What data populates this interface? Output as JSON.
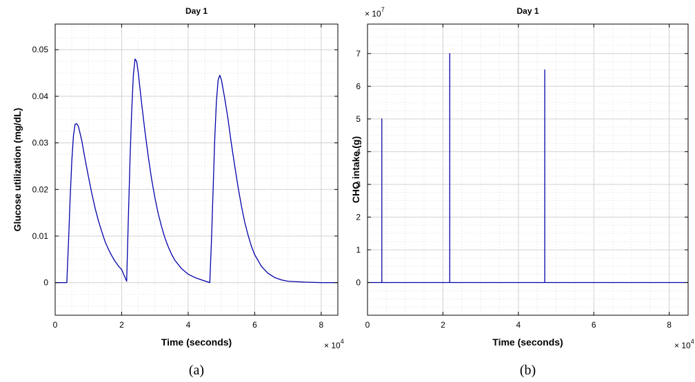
{
  "chart_data": [
    {
      "id": "a",
      "type": "line",
      "title": "Day 1",
      "xlabel": "Time (seconds)",
      "ylabel": "Glucose utilization (mg/dL)",
      "caption": "(a)",
      "x_multiplier_base": "10",
      "x_multiplier_exp": "4",
      "y_multiplier_base": "",
      "y_multiplier_exp": "",
      "xlim": [
        0,
        8.5
      ],
      "ylim": [
        -0.007,
        0.0555
      ],
      "xticks": [
        0,
        2,
        4,
        6,
        8
      ],
      "xtick_labels": [
        "0",
        "2",
        "4",
        "6",
        "8"
      ],
      "yticks": [
        0,
        0.01,
        0.02,
        0.03,
        0.04,
        0.05
      ],
      "ytick_labels": [
        "0",
        "0.01",
        "0.02",
        "0.03",
        "0.04",
        "0.05"
      ],
      "grid": true,
      "color": "#0000aa",
      "series": [
        {
          "x": [
            0,
            0.35,
            0.4,
            0.45,
            0.5,
            0.55,
            0.6,
            0.65,
            0.7,
            0.8,
            0.9,
            1.0,
            1.1,
            1.2,
            1.3,
            1.4,
            1.5,
            1.6,
            1.7,
            1.8,
            1.9,
            2.0,
            2.15,
            2.2,
            2.25,
            2.3,
            2.35,
            2.4,
            2.45,
            2.5,
            2.6,
            2.7,
            2.8,
            2.9,
            3.0,
            3.1,
            3.2,
            3.3,
            3.4,
            3.5,
            3.6,
            3.8,
            4.0,
            4.2,
            4.4,
            4.65,
            4.7,
            4.75,
            4.8,
            4.85,
            4.9,
            4.95,
            5.0,
            5.1,
            5.2,
            5.3,
            5.4,
            5.5,
            5.6,
            5.7,
            5.8,
            5.9,
            6.0,
            6.2,
            6.4,
            6.6,
            6.8,
            7.0,
            7.5,
            8.0,
            8.5
          ],
          "y": [
            0,
            0,
            0.0085,
            0.018,
            0.026,
            0.0315,
            0.034,
            0.0341,
            0.0335,
            0.0305,
            0.0265,
            0.0228,
            0.0192,
            0.016,
            0.0133,
            0.011,
            0.0088,
            0.0072,
            0.0058,
            0.0046,
            0.0036,
            0.0028,
            0.0003,
            0.0135,
            0.026,
            0.0365,
            0.0445,
            0.048,
            0.0475,
            0.045,
            0.0385,
            0.0325,
            0.027,
            0.0222,
            0.0182,
            0.0148,
            0.012,
            0.0096,
            0.0077,
            0.0061,
            0.0048,
            0.003,
            0.0018,
            0.0011,
            0.0006,
            0,
            0.009,
            0.02,
            0.031,
            0.039,
            0.0435,
            0.0445,
            0.0435,
            0.0395,
            0.035,
            0.0298,
            0.025,
            0.0205,
            0.0165,
            0.013,
            0.0102,
            0.0078,
            0.006,
            0.0035,
            0.002,
            0.0011,
            0.0006,
            0.0003,
            0.0001,
            0,
            0
          ]
        }
      ]
    },
    {
      "id": "b",
      "type": "line",
      "title": "Day 1",
      "xlabel": "Time (seconds)",
      "ylabel": "CHO intake (g)",
      "caption": "(b)",
      "x_multiplier_base": "10",
      "x_multiplier_exp": "4",
      "y_multiplier_base": "10",
      "y_multiplier_exp": "7",
      "xlim": [
        0,
        8.5
      ],
      "ylim": [
        -1,
        7.9
      ],
      "xticks": [
        0,
        2,
        4,
        6,
        8
      ],
      "xtick_labels": [
        "0",
        "2",
        "4",
        "6",
        "8"
      ],
      "yticks": [
        0,
        1,
        2,
        3,
        4,
        5,
        6,
        7
      ],
      "ytick_labels": [
        "0",
        "1",
        "2",
        "3",
        "4",
        "5",
        "6",
        "7"
      ],
      "grid": true,
      "color": "#0000aa",
      "series": [
        {
          "x": [
            0,
            0.38,
            0.38,
            0.38,
            2.18,
            2.18,
            2.18,
            4.7,
            4.7,
            4.7,
            8.5
          ],
          "y": [
            0,
            0,
            5,
            0,
            0,
            7,
            0,
            0,
            6.5,
            0,
            0
          ]
        }
      ]
    }
  ]
}
